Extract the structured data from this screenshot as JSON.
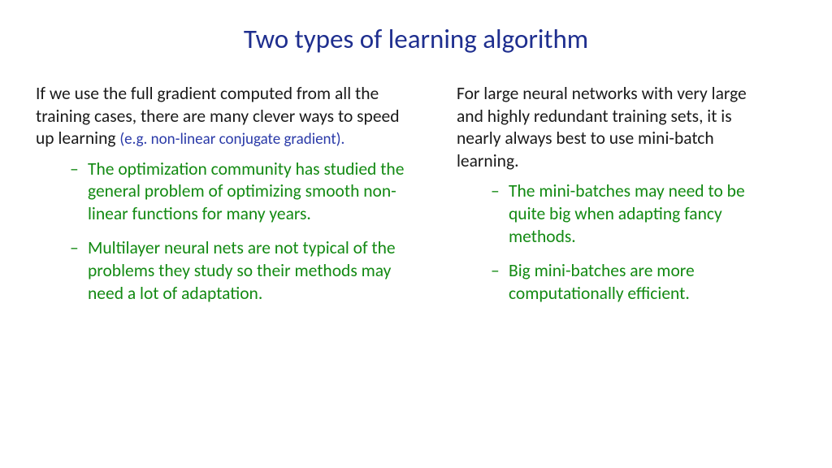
{
  "colors": {
    "title": "#1f2f8f",
    "body": "#1a1a1a",
    "aside": "#2a3aa8",
    "bullet": "#138a13",
    "bg": "#ffffff"
  },
  "title": "Two types of learning algorithm",
  "left": {
    "para_main": "If we use the full gradient computed from all the training cases, there are many clever ways to speed up learning ",
    "para_aside": "(e.g. non-linear conjugate gradient).",
    "bullets": [
      "The optimization community has studied the general problem of optimizing smooth non-linear functions for many years.",
      "Multilayer neural nets are not typical of the problems they study so their methods may need a lot of adaptation."
    ]
  },
  "right": {
    "para_main": "For large neural networks with very large and highly redundant training sets, it is nearly always best to use mini-batch learning.",
    "bullets": [
      "The mini-batches may need to be quite big when adapting fancy methods.",
      "Big mini-batches are more computationally efficient."
    ]
  }
}
